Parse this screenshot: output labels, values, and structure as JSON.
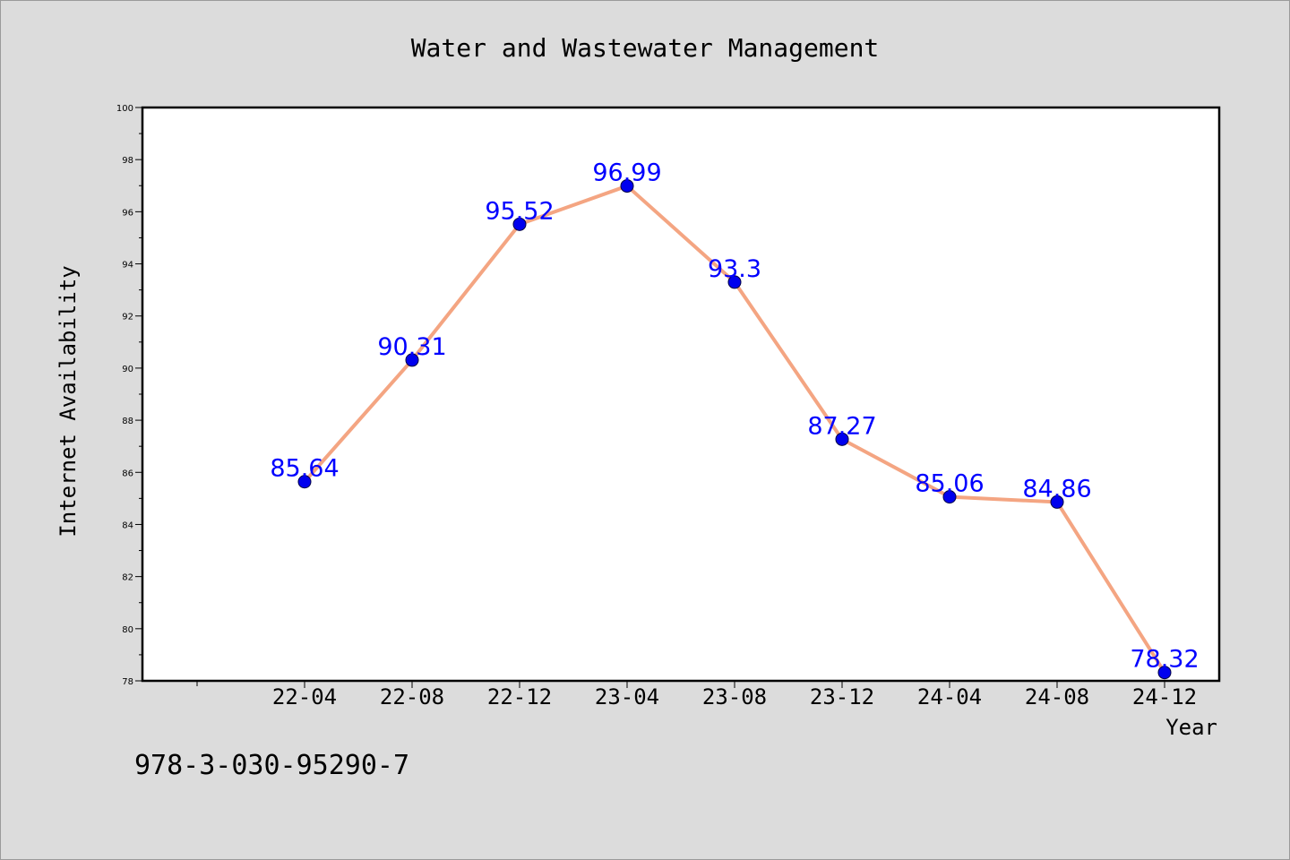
{
  "chart_data": {
    "type": "line",
    "title": "Water and Wastewater Management",
    "xlabel": "Year",
    "ylabel": "Internet Availability",
    "categories": [
      "22-04",
      "22-08",
      "22-12",
      "23-04",
      "23-08",
      "23-12",
      "24-04",
      "24-08",
      "24-12"
    ],
    "series": [
      {
        "values": [
          85.64,
          90.31,
          95.52,
          96.99,
          93.3,
          87.27,
          85.06,
          84.86,
          78.32
        ],
        "labels": [
          "85.64",
          "90.31",
          "95.52",
          "96.99",
          "93.3",
          "87.27",
          "85.06",
          "84.86",
          "78.32"
        ],
        "line_color": "#f4a582",
        "marker_color": "#0000ee"
      }
    ],
    "ylim": [
      78,
      100
    ],
    "yticks": [
      "78",
      "80",
      "82",
      "84",
      "86",
      "88",
      "90",
      "92",
      "94",
      "96",
      "98",
      "100"
    ],
    "grid": false,
    "label_color": "#0000ff"
  },
  "footer_text": "978-3-030-95290-7"
}
